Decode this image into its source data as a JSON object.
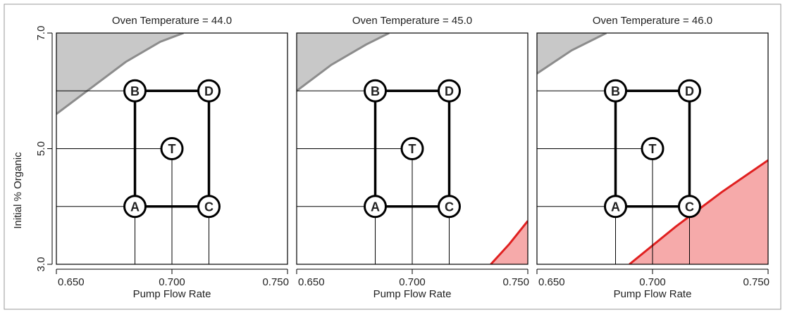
{
  "figure": {
    "ylabel": "Initial % Organic",
    "xlabel": "Pump Flow Rate"
  },
  "chart_data": [
    {
      "type": "contour",
      "title": "Oven Temperature = 44.0",
      "xlabel": "Pump Flow Rate",
      "ylabel": "Initial % Organic",
      "xlim": [
        0.65,
        0.75
      ],
      "ylim": [
        3.0,
        7.0
      ],
      "xticks": [
        "0.650",
        "0.700",
        "0.750"
      ],
      "yticks": [
        "3.0",
        "5.0",
        "7.0"
      ],
      "grey_region_boundary": [
        [
          0.65,
          5.6
        ],
        [
          0.665,
          6.05
        ],
        [
          0.68,
          6.5
        ],
        [
          0.695,
          6.85
        ],
        [
          0.705,
          7.0
        ]
      ],
      "red_region_boundary": [],
      "design_points": [
        {
          "label": "A",
          "x": 0.684,
          "y": 4.0
        },
        {
          "label": "B",
          "x": 0.684,
          "y": 6.0
        },
        {
          "label": "C",
          "x": 0.716,
          "y": 4.0
        },
        {
          "label": "D",
          "x": 0.716,
          "y": 6.0
        },
        {
          "label": "T",
          "x": 0.7,
          "y": 5.0
        }
      ]
    },
    {
      "type": "contour",
      "title": "Oven Temperature = 45.0",
      "xlabel": "Pump Flow Rate",
      "ylabel": "Initial % Organic",
      "xlim": [
        0.65,
        0.75
      ],
      "ylim": [
        3.0,
        7.0
      ],
      "xticks": [
        "0.650",
        "0.700",
        "0.750"
      ],
      "yticks": [
        "3.0",
        "5.0",
        "7.0"
      ],
      "grey_region_boundary": [
        [
          0.65,
          6.0
        ],
        [
          0.665,
          6.45
        ],
        [
          0.68,
          6.8
        ],
        [
          0.69,
          7.0
        ]
      ],
      "red_region_boundary": [
        [
          0.734,
          3.0
        ],
        [
          0.742,
          3.35
        ],
        [
          0.75,
          3.75
        ]
      ],
      "design_points": [
        {
          "label": "A",
          "x": 0.684,
          "y": 4.0
        },
        {
          "label": "B",
          "x": 0.684,
          "y": 6.0
        },
        {
          "label": "C",
          "x": 0.716,
          "y": 4.0
        },
        {
          "label": "D",
          "x": 0.716,
          "y": 6.0
        },
        {
          "label": "T",
          "x": 0.7,
          "y": 5.0
        }
      ]
    },
    {
      "type": "contour",
      "title": "Oven Temperature = 46.0",
      "xlabel": "Pump Flow Rate",
      "ylabel": "Initial % Organic",
      "xlim": [
        0.65,
        0.75
      ],
      "ylim": [
        3.0,
        7.0
      ],
      "xticks": [
        "0.650",
        "0.700",
        "0.750"
      ],
      "yticks": [
        "3.0",
        "5.0",
        "7.0"
      ],
      "grey_region_boundary": [
        [
          0.65,
          6.3
        ],
        [
          0.665,
          6.7
        ],
        [
          0.68,
          7.0
        ]
      ],
      "red_region_boundary": [
        [
          0.69,
          3.0
        ],
        [
          0.71,
          3.65
        ],
        [
          0.73,
          4.25
        ],
        [
          0.75,
          4.8
        ]
      ],
      "design_points": [
        {
          "label": "A",
          "x": 0.684,
          "y": 4.0
        },
        {
          "label": "B",
          "x": 0.684,
          "y": 6.0
        },
        {
          "label": "C",
          "x": 0.716,
          "y": 4.0
        },
        {
          "label": "D",
          "x": 0.716,
          "y": 6.0
        },
        {
          "label": "T",
          "x": 0.7,
          "y": 5.0
        }
      ]
    }
  ],
  "colors": {
    "grey_fill": "#c8c8c8",
    "grey_line": "#8c8c8c",
    "red_fill": "#f6aaaa",
    "red_line": "#e02020",
    "ink": "#000000"
  }
}
